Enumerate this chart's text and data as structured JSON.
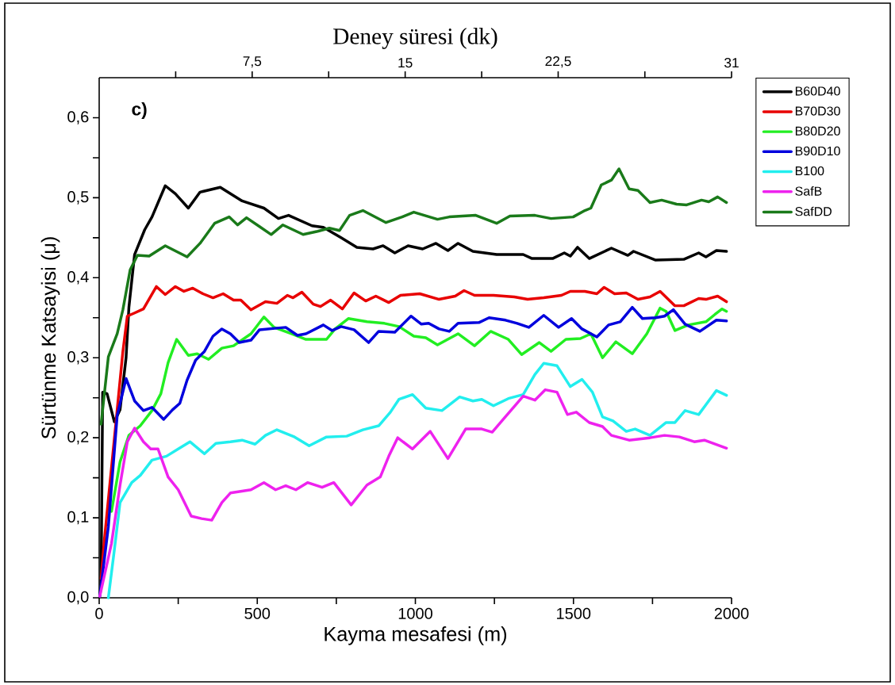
{
  "chart_data": {
    "type": "line",
    "xlabel": "Kayma mesafesi (m)",
    "ylabel": "Sürtünme Katsayisi (μ)",
    "x2label": "Deney süresi (dk)",
    "annotations": [
      "c)"
    ],
    "xlim": [
      0,
      2000
    ],
    "ylim": [
      0,
      0.65
    ],
    "x2lim": [
      0,
      31
    ],
    "xticks": [
      0,
      {
        "value": 250,
        "label": null
      },
      500,
      {
        "value": 750,
        "label": null
      },
      1000,
      {
        "value": 1250,
        "label": null
      },
      1500,
      {
        "value": 1750,
        "label": null
      },
      2000
    ],
    "yticks": [
      {
        "value": 0,
        "label": "0,0"
      },
      {
        "value": 0.05,
        "label": null
      },
      {
        "value": 0.1,
        "label": "0,1"
      },
      {
        "value": 0.15,
        "label": null
      },
      {
        "value": 0.2,
        "label": "0,2"
      },
      {
        "value": 0.25,
        "label": null
      },
      {
        "value": 0.3,
        "label": "0,3"
      },
      {
        "value": 0.35,
        "label": null
      },
      {
        "value": 0.4,
        "label": "0,4"
      },
      {
        "value": 0.45,
        "label": null
      },
      {
        "value": 0.5,
        "label": "0,5"
      },
      {
        "value": 0.55,
        "label": null
      },
      {
        "value": 0.6,
        "label": "0,6"
      }
    ],
    "x2ticks": [
      {
        "value": 3.75,
        "label": null
      },
      {
        "value": 7.5,
        "label": "7,5"
      },
      {
        "value": 11.25,
        "label": null
      },
      15,
      {
        "value": 18.75,
        "label": null
      },
      {
        "value": 22.5,
        "label": "22,5"
      },
      {
        "value": 26.75,
        "label": null
      },
      31
    ],
    "legend": "right",
    "series": [
      {
        "name": "B60D40",
        "color": "#000000",
        "x": [
          6,
          11,
          25,
          48,
          66,
          85,
          94,
          112,
          144,
          167,
          209,
          241,
          282,
          319,
          383,
          452,
          521,
          567,
          599,
          673,
          709,
          765,
          815,
          866,
          898,
          935,
          977,
          1023,
          1065,
          1103,
          1135,
          1182,
          1257,
          1341,
          1369,
          1434,
          1471,
          1490,
          1513,
          1550,
          1620,
          1672,
          1690,
          1760,
          1849,
          1896,
          1919,
          1952,
          1984
        ],
        "values": [
          0.016,
          0.257,
          0.255,
          0.22,
          0.235,
          0.3,
          0.363,
          0.429,
          0.46,
          0.476,
          0.515,
          0.505,
          0.487,
          0.507,
          0.513,
          0.496,
          0.487,
          0.474,
          0.478,
          0.465,
          0.463,
          0.45,
          0.438,
          0.436,
          0.44,
          0.431,
          0.44,
          0.436,
          0.443,
          0.434,
          0.443,
          0.433,
          0.429,
          0.429,
          0.424,
          0.424,
          0.431,
          0.427,
          0.438,
          0.424,
          0.437,
          0.428,
          0.433,
          0.422,
          0.423,
          0.431,
          0.426,
          0.434,
          0.433
        ]
      },
      {
        "name": "B70D30",
        "color": "#e80000",
        "x": [
          6,
          16,
          48,
          75,
          89,
          112,
          140,
          181,
          209,
          241,
          268,
          296,
          328,
          360,
          392,
          425,
          448,
          480,
          526,
          562,
          595,
          613,
          641,
          677,
          700,
          732,
          769,
          806,
          843,
          875,
          916,
          953,
          1014,
          1075,
          1126,
          1154,
          1187,
          1247,
          1313,
          1355,
          1406,
          1462,
          1490,
          1536,
          1574,
          1597,
          1630,
          1667,
          1704,
          1742,
          1774,
          1821,
          1849,
          1896,
          1919,
          1956,
          1984
        ],
        "values": [
          0.024,
          0.071,
          0.199,
          0.308,
          0.352,
          0.356,
          0.361,
          0.389,
          0.379,
          0.389,
          0.383,
          0.387,
          0.38,
          0.375,
          0.38,
          0.372,
          0.372,
          0.36,
          0.37,
          0.368,
          0.378,
          0.375,
          0.382,
          0.367,
          0.364,
          0.372,
          0.361,
          0.381,
          0.371,
          0.377,
          0.369,
          0.378,
          0.38,
          0.373,
          0.377,
          0.384,
          0.378,
          0.378,
          0.376,
          0.373,
          0.375,
          0.378,
          0.383,
          0.383,
          0.38,
          0.388,
          0.38,
          0.381,
          0.373,
          0.376,
          0.383,
          0.365,
          0.365,
          0.374,
          0.373,
          0.377,
          0.37
        ]
      },
      {
        "name": "B80D20",
        "color": "#22ee22",
        "x": [
          39,
          66,
          94,
          130,
          167,
          195,
          218,
          245,
          282,
          310,
          346,
          388,
          425,
          480,
          521,
          553,
          608,
          654,
          719,
          746,
          788,
          847,
          902,
          948,
          995,
          1033,
          1070,
          1135,
          1187,
          1238,
          1294,
          1336,
          1392,
          1429,
          1476,
          1522,
          1555,
          1592,
          1634,
          1686,
          1732,
          1774,
          1793,
          1821,
          1863,
          1919,
          1947,
          1970,
          1984
        ],
        "values": [
          0.108,
          0.17,
          0.203,
          0.215,
          0.234,
          0.255,
          0.294,
          0.323,
          0.303,
          0.305,
          0.298,
          0.312,
          0.315,
          0.33,
          0.351,
          0.338,
          0.33,
          0.323,
          0.323,
          0.336,
          0.349,
          0.345,
          0.343,
          0.339,
          0.327,
          0.325,
          0.316,
          0.33,
          0.315,
          0.333,
          0.323,
          0.304,
          0.319,
          0.308,
          0.323,
          0.324,
          0.33,
          0.3,
          0.32,
          0.305,
          0.33,
          0.362,
          0.358,
          0.334,
          0.341,
          0.345,
          0.354,
          0.361,
          0.358
        ]
      },
      {
        "name": "B90D10",
        "color": "#0000dd",
        "x": [
          2,
          29,
          57,
          85,
          112,
          140,
          167,
          204,
          232,
          255,
          278,
          305,
          333,
          360,
          388,
          415,
          443,
          480,
          507,
          562,
          590,
          627,
          654,
          709,
          737,
          765,
          806,
          852,
          884,
          935,
          986,
          1019,
          1042,
          1075,
          1107,
          1135,
          1201,
          1233,
          1285,
          1322,
          1359,
          1406,
          1453,
          1494,
          1527,
          1574,
          1611,
          1648,
          1686,
          1718,
          1760,
          1788,
          1816,
          1853,
          1900,
          1952,
          1984
        ],
        "values": [
          0.002,
          0.089,
          0.228,
          0.274,
          0.246,
          0.234,
          0.238,
          0.223,
          0.235,
          0.243,
          0.272,
          0.297,
          0.308,
          0.327,
          0.336,
          0.33,
          0.319,
          0.322,
          0.335,
          0.337,
          0.338,
          0.328,
          0.33,
          0.341,
          0.334,
          0.339,
          0.335,
          0.319,
          0.333,
          0.332,
          0.352,
          0.342,
          0.343,
          0.336,
          0.333,
          0.343,
          0.344,
          0.35,
          0.347,
          0.343,
          0.338,
          0.353,
          0.338,
          0.349,
          0.336,
          0.326,
          0.341,
          0.345,
          0.363,
          0.349,
          0.35,
          0.352,
          0.36,
          0.342,
          0.333,
          0.347,
          0.346
        ]
      },
      {
        "name": "B100",
        "color": "#22eeee",
        "x": [
          29,
          48,
          66,
          103,
          130,
          167,
          213,
          250,
          287,
          333,
          369,
          415,
          452,
          493,
          526,
          562,
          618,
          664,
          719,
          783,
          834,
          884,
          921,
          948,
          991,
          1033,
          1084,
          1140,
          1182,
          1210,
          1247,
          1294,
          1341,
          1378,
          1406,
          1448,
          1490,
          1527,
          1560,
          1592,
          1625,
          1667,
          1695,
          1742,
          1793,
          1821,
          1853,
          1896,
          1952,
          1984
        ],
        "values": [
          0,
          0.06,
          0.119,
          0.144,
          0.153,
          0.172,
          0.177,
          0.186,
          0.195,
          0.18,
          0.193,
          0.195,
          0.197,
          0.192,
          0.203,
          0.21,
          0.201,
          0.19,
          0.201,
          0.202,
          0.21,
          0.215,
          0.232,
          0.248,
          0.254,
          0.237,
          0.234,
          0.251,
          0.246,
          0.248,
          0.24,
          0.249,
          0.254,
          0.279,
          0.293,
          0.29,
          0.264,
          0.273,
          0.257,
          0.226,
          0.221,
          0.208,
          0.211,
          0.203,
          0.219,
          0.219,
          0.234,
          0.229,
          0.259,
          0.253
        ]
      },
      {
        "name": "SafB",
        "color": "#ee22ee",
        "x": [
          2,
          39,
          66,
          89,
          112,
          140,
          163,
          186,
          218,
          250,
          291,
          324,
          356,
          388,
          415,
          480,
          521,
          558,
          590,
          622,
          659,
          705,
          742,
          797,
          847,
          889,
          916,
          944,
          991,
          1047,
          1103,
          1159,
          1210,
          1243,
          1280,
          1341,
          1378,
          1411,
          1448,
          1481,
          1509,
          1550,
          1592,
          1620,
          1676,
          1742,
          1788,
          1835,
          1882,
          1914,
          1984
        ],
        "values": [
          0.002,
          0.068,
          0.141,
          0.195,
          0.212,
          0.195,
          0.186,
          0.186,
          0.151,
          0.135,
          0.102,
          0.099,
          0.097,
          0.119,
          0.131,
          0.135,
          0.144,
          0.135,
          0.14,
          0.135,
          0.144,
          0.138,
          0.144,
          0.116,
          0.141,
          0.151,
          0.177,
          0.2,
          0.186,
          0.208,
          0.174,
          0.211,
          0.211,
          0.207,
          0.224,
          0.252,
          0.247,
          0.26,
          0.257,
          0.229,
          0.232,
          0.219,
          0.214,
          0.203,
          0.197,
          0.2,
          0.203,
          0.201,
          0.195,
          0.197,
          0.187
        ]
      },
      {
        "name": "SafDD",
        "color": "#1a7a1a",
        "x": [
          6,
          29,
          57,
          75,
          98,
          121,
          158,
          209,
          278,
          319,
          365,
          411,
          438,
          466,
          507,
          544,
          581,
          645,
          691,
          728,
          760,
          792,
          834,
          907,
          958,
          995,
          1070,
          1107,
          1191,
          1257,
          1299,
          1378,
          1429,
          1499,
          1536,
          1555,
          1588,
          1620,
          1644,
          1676,
          1704,
          1742,
          1779,
          1826,
          1858,
          1905,
          1928,
          1956,
          1984
        ],
        "values": [
          0.217,
          0.301,
          0.33,
          0.36,
          0.41,
          0.428,
          0.427,
          0.44,
          0.426,
          0.443,
          0.468,
          0.476,
          0.466,
          0.475,
          0.464,
          0.454,
          0.466,
          0.454,
          0.458,
          0.462,
          0.459,
          0.478,
          0.484,
          0.469,
          0.476,
          0.482,
          0.473,
          0.476,
          0.478,
          0.468,
          0.477,
          0.478,
          0.474,
          0.476,
          0.484,
          0.487,
          0.516,
          0.522,
          0.536,
          0.511,
          0.509,
          0.494,
          0.497,
          0.492,
          0.491,
          0.497,
          0.495,
          0.501,
          0.494
        ]
      }
    ]
  }
}
